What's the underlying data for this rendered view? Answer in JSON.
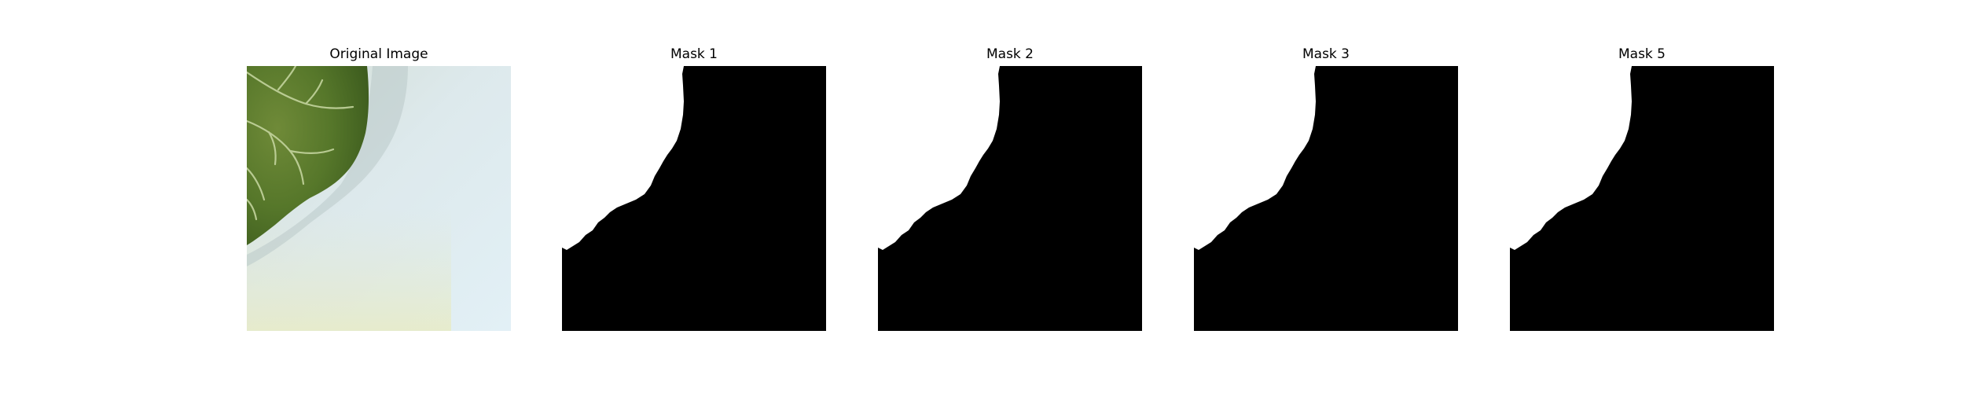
{
  "panels": [
    {
      "title": "Original Image",
      "kind": "photo",
      "content": "leaf-on-light-background"
    },
    {
      "title": "Mask 1",
      "kind": "mask",
      "foreground": "#000000",
      "background": "#ffffff"
    },
    {
      "title": "Mask 2",
      "kind": "mask",
      "foreground": "#000000",
      "background": "#ffffff"
    },
    {
      "title": "Mask 3",
      "kind": "mask",
      "foreground": "#000000",
      "background": "#ffffff"
    },
    {
      "title": "Mask 5",
      "kind": "mask",
      "foreground": "#000000",
      "background": "#ffffff"
    }
  ]
}
